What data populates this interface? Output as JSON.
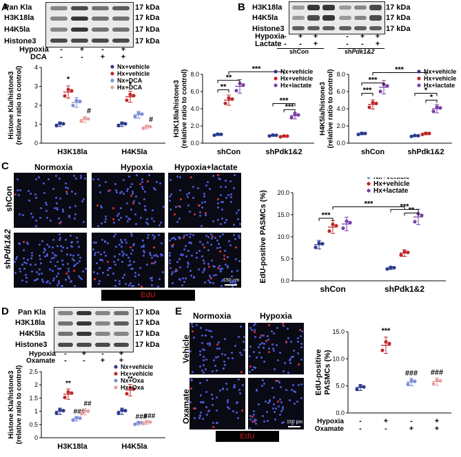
{
  "panels": {
    "A": "A",
    "B": "B",
    "C": "C",
    "D": "D",
    "E": "E"
  },
  "kda": "17 kDa",
  "panelA": {
    "blot_rows": [
      "Pan Kla",
      "H3K18la",
      "H4K5la",
      "Histone3"
    ],
    "treat_rows": [
      "Hypoxia",
      "DCA"
    ],
    "signs": [
      [
        "-",
        "+",
        "-",
        "+"
      ],
      [
        "-",
        "-",
        "+",
        "+"
      ]
    ],
    "chart_data": {
      "type": "scatter",
      "categories": [
        "H3K18la",
        "H4K5la"
      ],
      "ylabel": "Histone Kla/histone3\n(relative ratio to control)",
      "ylim": [
        0,
        4
      ],
      "yticks": [
        0,
        1,
        2,
        3,
        4
      ],
      "series": [
        {
          "name": "Nx+vehicle",
          "color": "#2b3a8c",
          "values": [
            1.0,
            1.0
          ],
          "sig": [
            "",
            ""
          ]
        },
        {
          "name": "Hx+vehicle",
          "color": "#c0282a",
          "values": [
            2.7,
            2.45
          ],
          "sig": [
            "*",
            "*"
          ]
        },
        {
          "name": "Nx+DCA",
          "color": "#7f8fd8",
          "values": [
            2.15,
            1.5
          ],
          "sig": [
            "",
            ""
          ]
        },
        {
          "name": "Hx+DCA",
          "color": "#e8a0a0",
          "values": [
            1.25,
            0.85
          ],
          "sig": [
            "#",
            "#"
          ]
        }
      ]
    }
  },
  "panelB": {
    "blot_rows": [
      "H3K18la",
      "H4K5la",
      "Histone3"
    ],
    "treat_rows": [
      "Hypoxia",
      "Lactate"
    ],
    "signs": [
      [
        "-",
        "+",
        "+",
        "-",
        "+",
        "+"
      ],
      [
        "-",
        "-",
        "+",
        "-",
        "-",
        "+"
      ]
    ],
    "groups": [
      "shCon",
      "shPdk1&2"
    ],
    "group_label_plain": "sh",
    "group_label_ital": "Pdk1&2",
    "chart1": {
      "type": "scatter",
      "categories": [
        "shCon",
        "shPdk1&2"
      ],
      "ylabel": "H3K18la/histone3\n(relative ratio to control)",
      "ylim": [
        0,
        8
      ],
      "yticks": [
        0.0,
        2.0,
        4.0,
        6.0,
        8.0
      ],
      "series": [
        {
          "name": "Nx+vehicle",
          "color": "#2b3a8c",
          "values": [
            1.0,
            0.9
          ]
        },
        {
          "name": "Hx+vehicle",
          "color": "#c0282a",
          "values": [
            5.0,
            0.8
          ]
        },
        {
          "name": "Hx+lactate",
          "color": "#7b3fa8",
          "values": [
            6.6,
            3.2
          ]
        }
      ],
      "sig": [
        "**",
        "**",
        "***",
        "***",
        "***"
      ]
    },
    "chart2": {
      "type": "scatter",
      "categories": [
        "shCon",
        "shPdk1&2"
      ],
      "ylabel": "H4K5la/histone3\n(relative ratio to control)",
      "ylim": [
        0,
        8
      ],
      "yticks": [
        0.0,
        2.0,
        4.0,
        6.0,
        8.0
      ],
      "series": [
        {
          "name": "Nx+vehicle",
          "color": "#2b3a8c",
          "values": [
            1.1,
            0.85
          ]
        },
        {
          "name": "Hx+vehicle",
          "color": "#c0282a",
          "values": [
            4.5,
            1.1
          ]
        },
        {
          "name": "Hx+lactate",
          "color": "#7b3fa8",
          "values": [
            6.5,
            4.0
          ]
        }
      ],
      "sig": [
        "***",
        "***",
        "***",
        "*",
        "*"
      ]
    }
  },
  "panelC": {
    "cols": [
      "Normoxia",
      "Hypoxia",
      "Hypoxia+lactate"
    ],
    "rows_plain": [
      "shCon",
      "sh"
    ],
    "row2_ital": "Pdk1&2",
    "edu": "EdU",
    "scale": "150 μm",
    "chart_data": {
      "type": "scatter",
      "categories": [
        "shCon",
        "shPdk1&2"
      ],
      "ylabel": "EdU-positive PASMCs (%)",
      "ylim": [
        0,
        20
      ],
      "yticks": [
        0.0,
        5.0,
        10.0,
        15.0,
        20.0
      ],
      "series": [
        {
          "name": "Nx+vehicle",
          "color": "#2b3a8c",
          "values": [
            8.2,
            2.9
          ]
        },
        {
          "name": "Hx+vehicle",
          "color": "#c0282a",
          "values": [
            12.2,
            6.3
          ]
        },
        {
          "name": "Hx+lactate",
          "color": "#7b3fa8",
          "values": [
            12.9,
            14.5
          ]
        }
      ],
      "sig": [
        "***",
        "***",
        "***",
        "**"
      ]
    }
  },
  "panelD": {
    "blot_rows": [
      "Pan Kla",
      "H3K18la",
      "H4K5la",
      "Histone3"
    ],
    "treat_rows": [
      "Hypoxia",
      "Oxamate"
    ],
    "signs": [
      [
        "-",
        "+",
        "-",
        "+"
      ],
      [
        "-",
        "-",
        "+",
        "+"
      ]
    ],
    "chart_data": {
      "type": "scatter",
      "categories": [
        "H3K18la",
        "H4K5la"
      ],
      "ylabel": "Histone Kla/histone3\n(relative ratio to control)",
      "ylim": [
        0,
        2.5
      ],
      "yticks": [
        0,
        0.5,
        1.0,
        1.5,
        2.0,
        2.5
      ],
      "series": [
        {
          "name": "Nx+vehicle",
          "color": "#2b3a8c",
          "values": [
            1.0,
            1.0
          ],
          "sig": [
            "",
            ""
          ]
        },
        {
          "name": "Hx+vehicle",
          "color": "#c0282a",
          "values": [
            1.65,
            1.8
          ],
          "sig": [
            "**",
            "**"
          ]
        },
        {
          "name": "Nx+Oxa",
          "color": "#7f8fd8",
          "values": [
            0.72,
            0.55
          ],
          "sig": [
            "###",
            "###"
          ]
        },
        {
          "name": "Hx+Oxa",
          "color": "#e8a0a0",
          "values": [
            0.98,
            0.58
          ],
          "sig": [
            "##",
            "###"
          ]
        }
      ]
    }
  },
  "panelE": {
    "cols": [
      "Normoxia",
      "Hypoxia"
    ],
    "rows": [
      "Vehicle",
      "Oxamate"
    ],
    "edu": "EdU",
    "scale": "150 μm",
    "treat_rows": [
      "Hypoxia",
      "Oxamate"
    ],
    "signs": [
      [
        "-",
        "+",
        "-",
        "+"
      ],
      [
        "-",
        "-",
        "+",
        "+"
      ]
    ],
    "chart_data": {
      "type": "scatter",
      "categories": [
        "1",
        "2",
        "3",
        "4"
      ],
      "ylabel": "EdU-positive\nPASMCs (%)",
      "ylim": [
        0,
        15
      ],
      "yticks": [
        0.0,
        5.0,
        10.0,
        15.0
      ],
      "series": [
        {
          "name": "",
          "color": "#2b3a8c",
          "values": [
            4.7
          ]
        },
        {
          "name": "",
          "color": "#c0282a",
          "values": [
            12.5
          ]
        },
        {
          "name": "",
          "color": "#7f8fd8",
          "values": [
            5.7
          ]
        },
        {
          "name": "",
          "color": "#e8a0a0",
          "values": [
            5.8
          ]
        }
      ],
      "sig": [
        "",
        "***",
        "###",
        "###"
      ]
    }
  }
}
